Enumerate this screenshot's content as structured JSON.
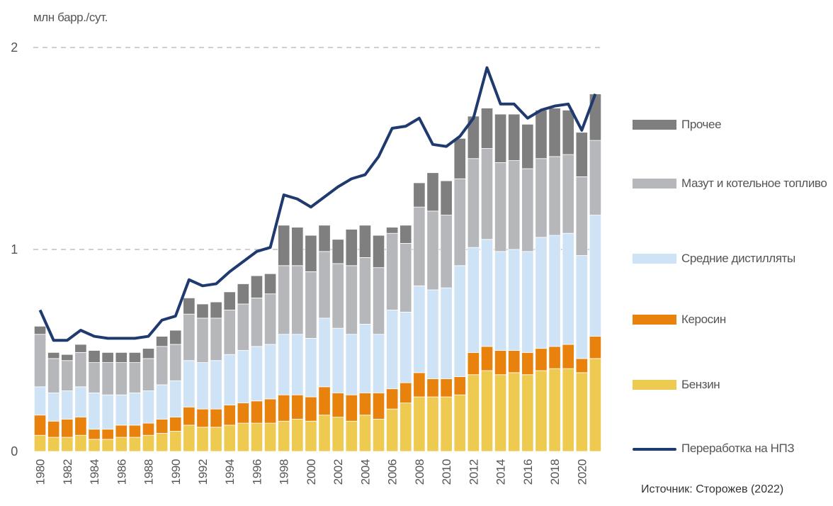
{
  "chart_data": {
    "type": "stacked_bar_line",
    "y_label": "млн барр./сут.",
    "source": "Источник: Сторожев (2022)",
    "ylim": [
      0,
      2
    ],
    "yticks": [
      0,
      1,
      2
    ],
    "grid": true,
    "legend": "right",
    "categories": [
      "1980",
      null,
      "1982",
      null,
      "1984",
      null,
      "1986",
      null,
      "1988",
      null,
      "1990",
      null,
      "1992",
      null,
      "1994",
      null,
      "1996",
      null,
      "1998",
      null,
      "2000",
      null,
      "2002",
      null,
      "2004",
      null,
      "2006",
      null,
      "2008",
      null,
      "2010",
      null,
      "2012",
      null,
      "2014",
      null,
      "2016",
      null,
      "2018",
      null,
      "2020",
      null
    ],
    "series": [
      {
        "name": "Прочее",
        "color": "#7f7f7f",
        "type": "bar",
        "values": [
          0.04,
          0.03,
          0.03,
          0.04,
          0.06,
          0.05,
          0.05,
          0.05,
          0.05,
          0.05,
          0.07,
          0.08,
          0.07,
          0.08,
          0.09,
          0.1,
          0.11,
          0.1,
          0.2,
          0.19,
          0.18,
          0.13,
          0.12,
          0.18,
          0.16,
          0.16,
          0.03,
          0.09,
          0.12,
          0.19,
          0.17,
          0.2,
          0.21,
          0.2,
          0.24,
          0.23,
          0.22,
          0.24,
          0.24,
          0.22,
          0.22,
          0.23
        ]
      },
      {
        "name": "Мазут и котельное топливо",
        "color": "#b5b7ba",
        "type": "bar",
        "values": [
          0.26,
          0.17,
          0.15,
          0.17,
          0.15,
          0.16,
          0.16,
          0.15,
          0.16,
          0.19,
          0.18,
          0.23,
          0.22,
          0.21,
          0.22,
          0.23,
          0.24,
          0.25,
          0.34,
          0.34,
          0.33,
          0.33,
          0.32,
          0.34,
          0.33,
          0.33,
          0.38,
          0.34,
          0.39,
          0.39,
          0.36,
          0.43,
          0.44,
          0.45,
          0.44,
          0.44,
          0.41,
          0.39,
          0.39,
          0.39,
          0.39,
          0.37
        ]
      },
      {
        "name": "Средние дистилляты",
        "color": "#cfe3f7",
        "type": "bar",
        "values": [
          0.14,
          0.14,
          0.14,
          0.15,
          0.18,
          0.17,
          0.15,
          0.16,
          0.16,
          0.17,
          0.18,
          0.23,
          0.23,
          0.24,
          0.25,
          0.26,
          0.27,
          0.27,
          0.3,
          0.3,
          0.29,
          0.34,
          0.32,
          0.3,
          0.34,
          0.29,
          0.39,
          0.35,
          0.43,
          0.44,
          0.45,
          0.55,
          0.52,
          0.53,
          0.49,
          0.5,
          0.5,
          0.55,
          0.55,
          0.55,
          0.51,
          0.6
        ]
      },
      {
        "name": "Керосин",
        "color": "#e8820c",
        "type": "bar",
        "values": [
          0.1,
          0.08,
          0.09,
          0.09,
          0.05,
          0.05,
          0.06,
          0.06,
          0.06,
          0.07,
          0.07,
          0.09,
          0.09,
          0.09,
          0.1,
          0.1,
          0.11,
          0.12,
          0.13,
          0.12,
          0.12,
          0.14,
          0.12,
          0.13,
          0.11,
          0.13,
          0.1,
          0.1,
          0.12,
          0.09,
          0.09,
          0.09,
          0.11,
          0.12,
          0.12,
          0.11,
          0.11,
          0.11,
          0.11,
          0.12,
          0.07,
          0.11
        ]
      },
      {
        "name": "Бензин",
        "color": "#efca50",
        "type": "bar",
        "values": [
          0.08,
          0.07,
          0.07,
          0.08,
          0.06,
          0.06,
          0.07,
          0.07,
          0.08,
          0.09,
          0.1,
          0.13,
          0.12,
          0.12,
          0.13,
          0.14,
          0.14,
          0.14,
          0.15,
          0.16,
          0.15,
          0.18,
          0.17,
          0.15,
          0.18,
          0.16,
          0.21,
          0.24,
          0.27,
          0.27,
          0.27,
          0.28,
          0.38,
          0.4,
          0.38,
          0.39,
          0.38,
          0.4,
          0.41,
          0.41,
          0.39,
          0.46
        ]
      },
      {
        "name": "Переработка на НПЗ",
        "color": "#1f3a6e",
        "type": "line",
        "values": [
          0.7,
          0.55,
          0.55,
          0.6,
          0.57,
          0.56,
          0.56,
          0.56,
          0.57,
          0.65,
          0.67,
          0.85,
          0.82,
          0.83,
          0.89,
          0.94,
          0.99,
          1.01,
          1.27,
          1.25,
          1.21,
          1.26,
          1.31,
          1.35,
          1.37,
          1.46,
          1.6,
          1.61,
          1.65,
          1.52,
          1.51,
          1.56,
          1.65,
          1.9,
          1.72,
          1.72,
          1.65,
          1.69,
          1.71,
          1.72,
          1.59,
          1.77
        ]
      }
    ]
  }
}
